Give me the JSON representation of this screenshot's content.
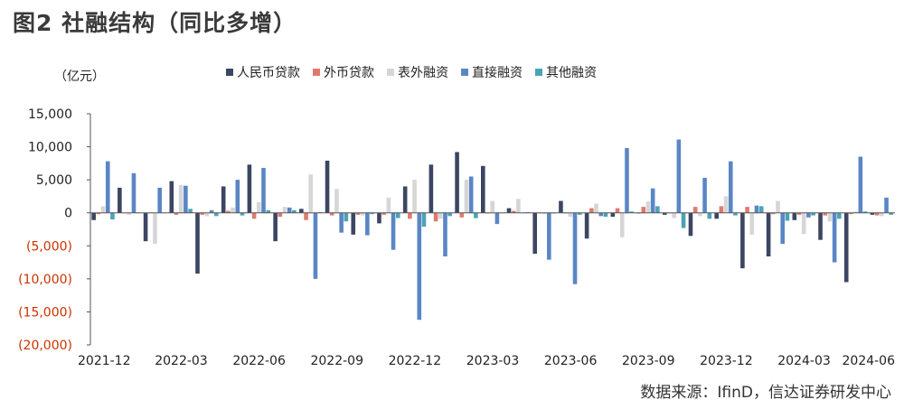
{
  "title": "图2 社融结构（同比多增）",
  "source": "数据来源：IfinD，信达证券研发中心",
  "chart_data": {
    "type": "bar",
    "unit_label": "（亿元）",
    "ylim": [
      -20000,
      15000
    ],
    "yticks": [
      {
        "value": 15000,
        "label": "15,000"
      },
      {
        "value": 10000,
        "label": "10,000"
      },
      {
        "value": 5000,
        "label": "5,000"
      },
      {
        "value": 0,
        "label": "0"
      },
      {
        "value": -5000,
        "label": "(5,000)"
      },
      {
        "value": -10000,
        "label": "(10,000)"
      },
      {
        "value": -15000,
        "label": "(15,000)"
      },
      {
        "value": -20000,
        "label": "(20,000)"
      }
    ],
    "negative_tick_color": "#cc3300",
    "grid": false,
    "legend_position": "top",
    "categories": [
      "2021-12",
      "2022-01",
      "2022-02",
      "2022-03",
      "2022-04",
      "2022-05",
      "2022-06",
      "2022-07",
      "2022-08",
      "2022-09",
      "2022-10",
      "2022-11",
      "2022-12",
      "2023-01",
      "2023-02",
      "2023-03",
      "2023-04",
      "2023-05",
      "2023-06",
      "2023-07",
      "2023-08",
      "2023-09",
      "2023-10",
      "2023-11",
      "2023-12",
      "2024-01",
      "2024-02",
      "2024-03",
      "2024-04",
      "2024-05",
      "2024-06"
    ],
    "xtick_labels": [
      {
        "index": 0,
        "label": "2021-12"
      },
      {
        "index": 3,
        "label": "2022-03"
      },
      {
        "index": 6,
        "label": "2022-06"
      },
      {
        "index": 9,
        "label": "2022-09"
      },
      {
        "index": 12,
        "label": "2022-12"
      },
      {
        "index": 15,
        "label": "2023-03"
      },
      {
        "index": 18,
        "label": "2023-06"
      },
      {
        "index": 21,
        "label": "2023-09"
      },
      {
        "index": 24,
        "label": "2023-12"
      },
      {
        "index": 27,
        "label": "2024-03"
      },
      {
        "index": 30,
        "label": "2024-06"
      }
    ],
    "series": [
      {
        "name": "人民币贷款",
        "color": "#3c4663",
        "values": [
          -1100,
          3800,
          -4300,
          4800,
          -9200,
          4000,
          7300,
          -4300,
          600,
          7900,
          -3300,
          -1600,
          4000,
          7300,
          9200,
          7100,
          700,
          -6200,
          1800,
          -3900,
          -600,
          -100,
          -300,
          -3500,
          -900,
          -8400,
          -6600,
          -1100,
          -4100,
          -10500,
          -300
        ]
      },
      {
        "name": "外币贷款",
        "color": "#e07a6f",
        "values": [
          -200,
          0,
          0,
          -300,
          -300,
          300,
          -900,
          -600,
          -1100,
          -400,
          -300,
          -300,
          -900,
          -1300,
          -700,
          -100,
          300,
          -100,
          -100,
          700,
          700,
          900,
          0,
          900,
          1000,
          900,
          -200,
          -300,
          -400,
          -200,
          -400
        ]
      },
      {
        "name": "表外融资",
        "color": "#d6d6d6",
        "values": [
          1000,
          -300,
          -4700,
          4200,
          -500,
          800,
          1600,
          900,
          5800,
          3600,
          -400,
          2300,
          5000,
          -900,
          5000,
          1800,
          2100,
          -200,
          -600,
          1400,
          -3700,
          1700,
          -800,
          -500,
          2500,
          -3300,
          1800,
          -3200,
          -1300,
          200,
          -500
        ]
      },
      {
        "name": "直接融资",
        "color": "#5b86c5",
        "values": [
          7800,
          6000,
          3800,
          4100,
          400,
          5000,
          6800,
          800,
          -10000,
          -3000,
          -3400,
          -5600,
          -16200,
          -6600,
          5500,
          -1700,
          0,
          -7100,
          -10800,
          -500,
          9800,
          3700,
          11100,
          5300,
          7800,
          1100,
          -4700,
          -700,
          -7500,
          8500,
          2300
        ]
      },
      {
        "name": "其他融资",
        "color": "#4ba3b5",
        "values": [
          -1000,
          0,
          0,
          600,
          -500,
          -400,
          400,
          400,
          100,
          -1300,
          -200,
          -800,
          -2100,
          -500,
          -800,
          0,
          100,
          -100,
          -300,
          -600,
          200,
          1000,
          -2300,
          -900,
          -400,
          1000,
          -1200,
          -400,
          -900,
          200,
          -300
        ]
      }
    ]
  }
}
